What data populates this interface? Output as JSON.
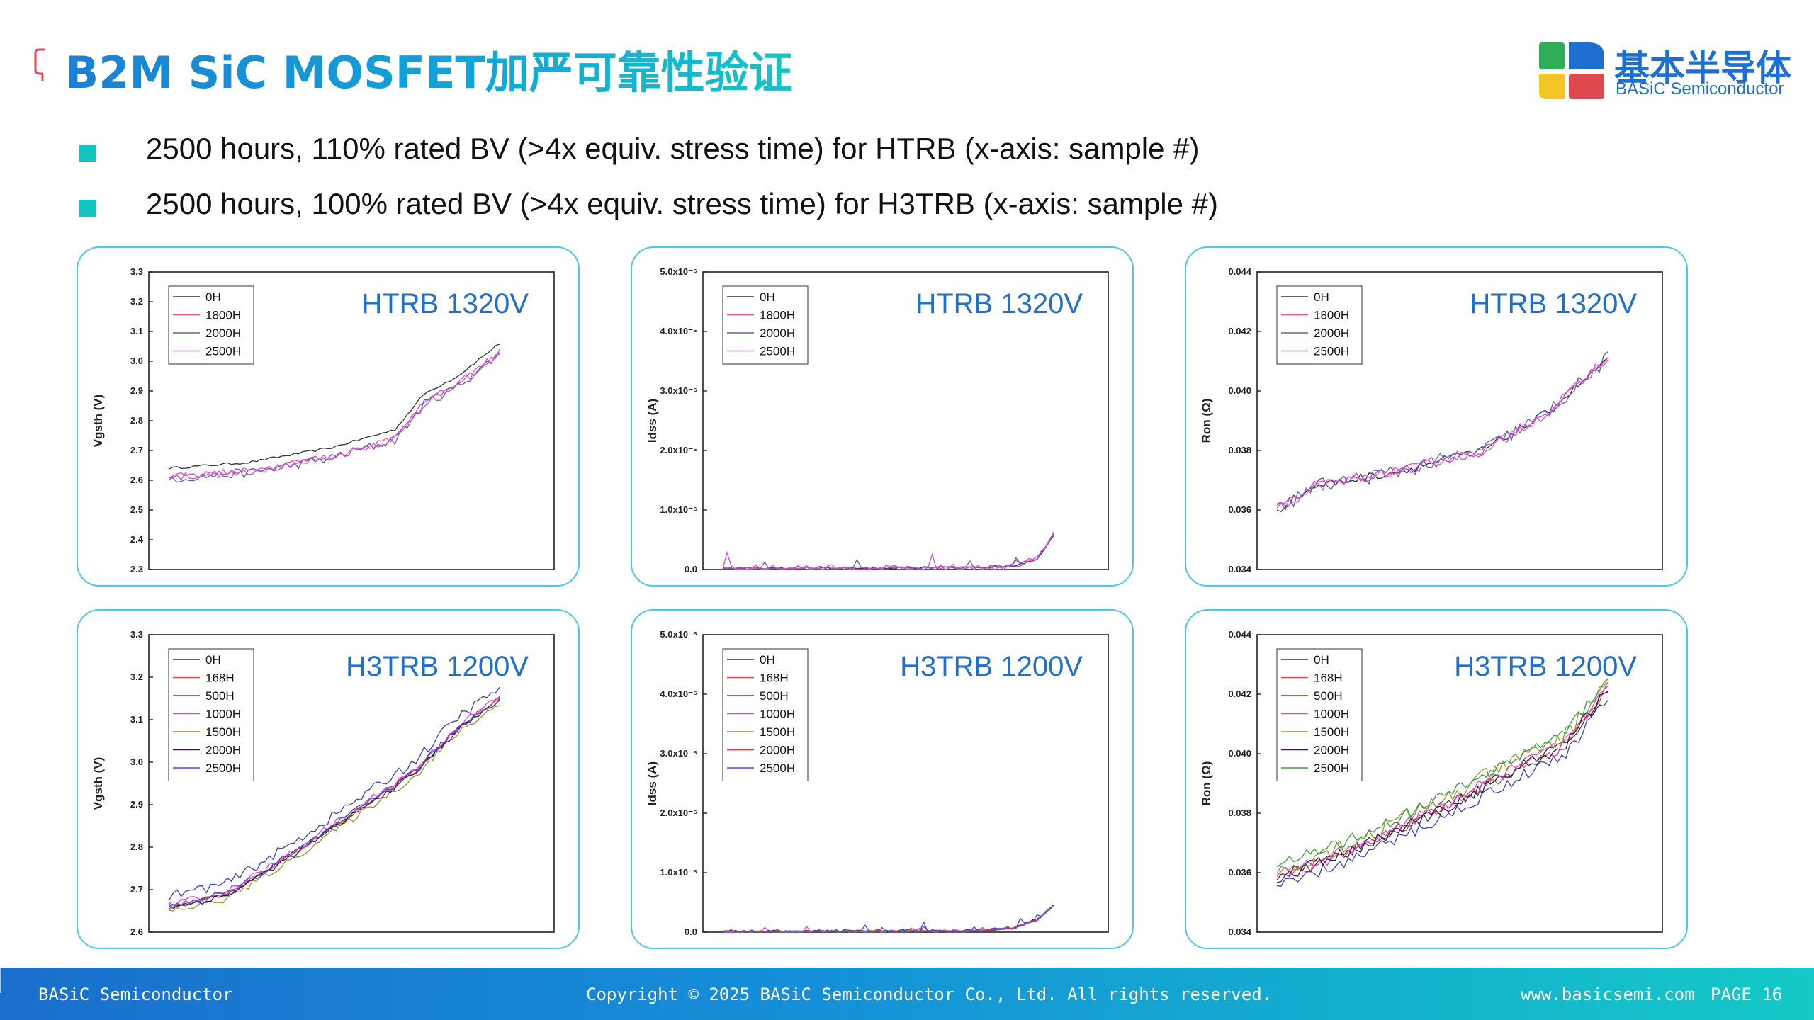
{
  "header": {
    "title": "B2M SiC MOSFET加严可靠性验证",
    "logo_cn": "基本半导体",
    "logo_en": "BASiC Semiconductor",
    "logo_colors": [
      "#1e6fcf",
      "#2fae5a",
      "#f3c623",
      "#e0484f"
    ]
  },
  "bullets": [
    "2500 hours, 110% rated BV (>4x equiv. stress time) for HTRB (x-axis: sample #)",
    "2500 hours, 100% rated BV (>4x equiv. stress time) for H3TRB (x-axis: sample #)"
  ],
  "colors": {
    "accent": "#12c5c0",
    "title_gradient": [
      "#1b7fd6",
      "#14c4c6"
    ],
    "panel_border": "#4cc8e8",
    "chart_label": "#1e6fcf"
  },
  "footer": {
    "company": "BASiC Semiconductor",
    "copyright": "Copyright © 2025 BASiC Semiconductor Co., Ltd. All rights reserved.",
    "website": "www.basicsemi.com",
    "page": "PAGE 16"
  },
  "chart_data": [
    {
      "type": "line",
      "label": "HTRB 1320V",
      "ylabel": "Vgsth (V)",
      "ylim": [
        2.3,
        3.3
      ],
      "yticks": [
        "2.3",
        "2.4",
        "2.5",
        "2.6",
        "2.7",
        "2.8",
        "2.9",
        "3.0",
        "3.1",
        "3.2",
        "3.3"
      ],
      "ytick_values": [
        2.3,
        2.4,
        2.5,
        2.6,
        2.7,
        2.8,
        2.9,
        3.0,
        3.1,
        3.2,
        3.3
      ],
      "grid": false,
      "legend_position": "top-left",
      "xrange": [
        1,
        80
      ],
      "key_points": {
        "x": [
          1,
          20,
          40,
          55,
          62,
          70,
          80
        ],
        "y": [
          2.61,
          2.63,
          2.68,
          2.74,
          2.86,
          2.92,
          3.03
        ]
      },
      "series": [
        {
          "name": "0H",
          "color": "#333333",
          "offset": 0.03,
          "noise": 0.004
        },
        {
          "name": "1800H",
          "color": "#e8508a",
          "offset": 0.0,
          "noise": 0.012
        },
        {
          "name": "2000H",
          "color": "#5a5ad0",
          "offset": -0.005,
          "noise": 0.016
        },
        {
          "name": "2500H",
          "color": "#d64fd6",
          "offset": 0.0,
          "noise": 0.014
        }
      ]
    },
    {
      "type": "line",
      "label": "HTRB 1320V",
      "ylabel": "Idss (A)",
      "ylim": [
        0,
        5e-06
      ],
      "yticks": [
        "0.0",
        "1.0x10⁻⁶",
        "2.0x10⁻⁶",
        "3.0x10⁻⁶",
        "4.0x10⁻⁶",
        "5.0x10⁻⁶"
      ],
      "ytick_values": [
        0,
        1e-06,
        2e-06,
        3e-06,
        4e-06,
        5e-06
      ],
      "grid": false,
      "legend_position": "top-left",
      "xrange": [
        1,
        80
      ],
      "key_points": {
        "x": [
          1,
          60,
          70,
          76,
          80
        ],
        "y": [
          2e-08,
          3e-08,
          6e-08,
          1.8e-07,
          5.8e-07
        ]
      },
      "series": [
        {
          "name": "0H",
          "color": "#333333",
          "offset": 0,
          "noise": 2e-08
        },
        {
          "name": "1800H",
          "color": "#e8508a",
          "offset": 0,
          "noise": 2e-08
        },
        {
          "name": "2000H",
          "color": "#5a5ad0",
          "offset": 0,
          "noise": 3e-08
        },
        {
          "name": "2500H",
          "color": "#d64fd6",
          "offset": 0,
          "noise": 6e-08
        }
      ]
    },
    {
      "type": "line",
      "label": "HTRB 1320V",
      "ylabel": "Ron (Ω)",
      "ylim": [
        0.034,
        0.044
      ],
      "yticks": [
        "0.034",
        "0.036",
        "0.038",
        "0.040",
        "0.042",
        "0.044"
      ],
      "ytick_values": [
        0.034,
        0.036,
        0.038,
        0.04,
        0.042,
        0.044
      ],
      "grid": false,
      "legend_position": "top-left",
      "xrange": [
        1,
        80
      ],
      "key_points": {
        "x": [
          1,
          10,
          30,
          50,
          65,
          80
        ],
        "y": [
          0.036,
          0.0368,
          0.0373,
          0.038,
          0.0392,
          0.0411
        ]
      },
      "series": [
        {
          "name": "0H",
          "color": "#333333",
          "offset": 0,
          "noise": 0.00015
        },
        {
          "name": "1800H",
          "color": "#e8508a",
          "offset": 0,
          "noise": 0.00015
        },
        {
          "name": "2000H",
          "color": "#5a5ad0",
          "offset": 0,
          "noise": 0.00025
        },
        {
          "name": "2500H",
          "color": "#d64fd6",
          "offset": 0,
          "noise": 0.0002
        }
      ]
    },
    {
      "type": "line",
      "label": "H3TRB 1200V",
      "ylabel": "Vgsth (V)",
      "ylim": [
        2.6,
        3.3
      ],
      "yticks": [
        "2.6",
        "2.7",
        "2.8",
        "2.9",
        "3.0",
        "3.1",
        "3.2",
        "3.3"
      ],
      "ytick_values": [
        2.6,
        2.7,
        2.8,
        2.9,
        3.0,
        3.1,
        3.2,
        3.3
      ],
      "grid": false,
      "legend_position": "top-left",
      "xrange": [
        1,
        80
      ],
      "key_points": {
        "x": [
          1,
          15,
          30,
          45,
          60,
          70,
          80
        ],
        "y": [
          2.66,
          2.69,
          2.78,
          2.88,
          2.98,
          3.08,
          3.15
        ]
      },
      "series": [
        {
          "name": "0H",
          "color": "#333333",
          "offset": 0,
          "noise": 0.005
        },
        {
          "name": "168H",
          "color": "#e05050",
          "offset": 0,
          "noise": 0.006
        },
        {
          "name": "500H",
          "color": "#3b3bd6",
          "offset": 0.025,
          "noise": 0.012
        },
        {
          "name": "1000H",
          "color": "#e040e0",
          "offset": 0.005,
          "noise": 0.008
        },
        {
          "name": "1500H",
          "color": "#8a9a2a",
          "offset": -0.012,
          "noise": 0.008
        },
        {
          "name": "2000H",
          "color": "#3a1a4a",
          "offset": -0.004,
          "noise": 0.007
        },
        {
          "name": "2500H",
          "color": "#4a4ad8",
          "offset": 0.0,
          "noise": 0.009
        }
      ]
    },
    {
      "type": "line",
      "label": "H3TRB 1200V",
      "ylabel": "Idss (A)",
      "ylim": [
        0,
        5e-06
      ],
      "yticks": [
        "0.0",
        "1.0x10⁻⁶",
        "2.0x10⁻⁶",
        "3.0x10⁻⁶",
        "4.0x10⁻⁶",
        "5.0x10⁻⁶"
      ],
      "ytick_values": [
        0,
        1e-06,
        2e-06,
        3e-06,
        4e-06,
        5e-06
      ],
      "grid": false,
      "legend_position": "top-left",
      "xrange": [
        1,
        80
      ],
      "key_points": {
        "x": [
          1,
          60,
          70,
          76,
          80
        ],
        "y": [
          1e-08,
          2e-08,
          6e-08,
          2e-07,
          4.5e-07
        ]
      },
      "series": [
        {
          "name": "0H",
          "color": "#333333",
          "offset": 0,
          "noise": 1e-08
        },
        {
          "name": "168H",
          "color": "#e05050",
          "offset": 0,
          "noise": 1e-08
        },
        {
          "name": "500H",
          "color": "#3b3bd6",
          "offset": 0,
          "noise": 3e-08
        },
        {
          "name": "1000H",
          "color": "#e040e0",
          "offset": 0,
          "noise": 2e-08
        },
        {
          "name": "1500H",
          "color": "#8a9a2a",
          "offset": 0,
          "noise": 1e-08
        },
        {
          "name": "2000H",
          "color": "#e83a3a",
          "offset": 0,
          "noise": 1e-08
        },
        {
          "name": "2500H",
          "color": "#4a4ad8",
          "offset": 0,
          "noise": 2e-08
        }
      ]
    },
    {
      "type": "line",
      "label": "H3TRB 1200V",
      "ylabel": "Ron (Ω)",
      "ylim": [
        0.034,
        0.044
      ],
      "yticks": [
        "0.034",
        "0.036",
        "0.038",
        "0.040",
        "0.042",
        "0.044"
      ],
      "ytick_values": [
        0.034,
        0.036,
        0.038,
        0.04,
        0.042,
        0.044
      ],
      "grid": false,
      "legend_position": "top-left",
      "xrange": [
        1,
        80
      ],
      "key_points": {
        "x": [
          1,
          20,
          40,
          60,
          70,
          80
        ],
        "y": [
          0.0358,
          0.0368,
          0.0381,
          0.0396,
          0.0403,
          0.0422
        ]
      },
      "series": [
        {
          "name": "0H",
          "color": "#333333",
          "offset": 0,
          "noise": 0.0002
        },
        {
          "name": "168H",
          "color": "#e05050",
          "offset": 0,
          "noise": 0.0002
        },
        {
          "name": "500H",
          "color": "#3b3bd6",
          "offset": -0.0003,
          "noise": 0.0002
        },
        {
          "name": "1000H",
          "color": "#e040e0",
          "offset": 0.0001,
          "noise": 0.0002
        },
        {
          "name": "1500H",
          "color": "#8a9a2a",
          "offset": 0.0003,
          "noise": 0.0003
        },
        {
          "name": "2000H",
          "color": "#3a1a4a",
          "offset": 0.0,
          "noise": 0.0002
        },
        {
          "name": "2500H",
          "color": "#3aa03a",
          "offset": 0.0004,
          "noise": 0.0002
        }
      ]
    }
  ]
}
